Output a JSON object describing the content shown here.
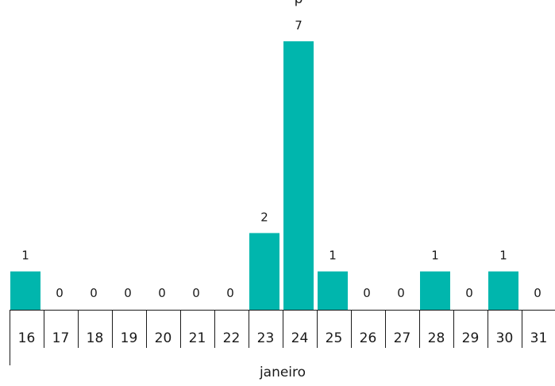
{
  "chart_data": {
    "type": "bar",
    "title": "p",
    "categories": [
      "16",
      "17",
      "18",
      "19",
      "20",
      "21",
      "22",
      "23",
      "24",
      "25",
      "26",
      "27",
      "28",
      "29",
      "30",
      "31"
    ],
    "values": [
      1,
      0,
      0,
      0,
      0,
      0,
      0,
      2,
      7,
      1,
      0,
      0,
      1,
      0,
      1,
      0
    ],
    "group_label": "janeiro",
    "colors": {
      "bar": "#00b6ad"
    },
    "data_labels": true,
    "grid": false,
    "ylim": [
      0,
      7
    ]
  }
}
